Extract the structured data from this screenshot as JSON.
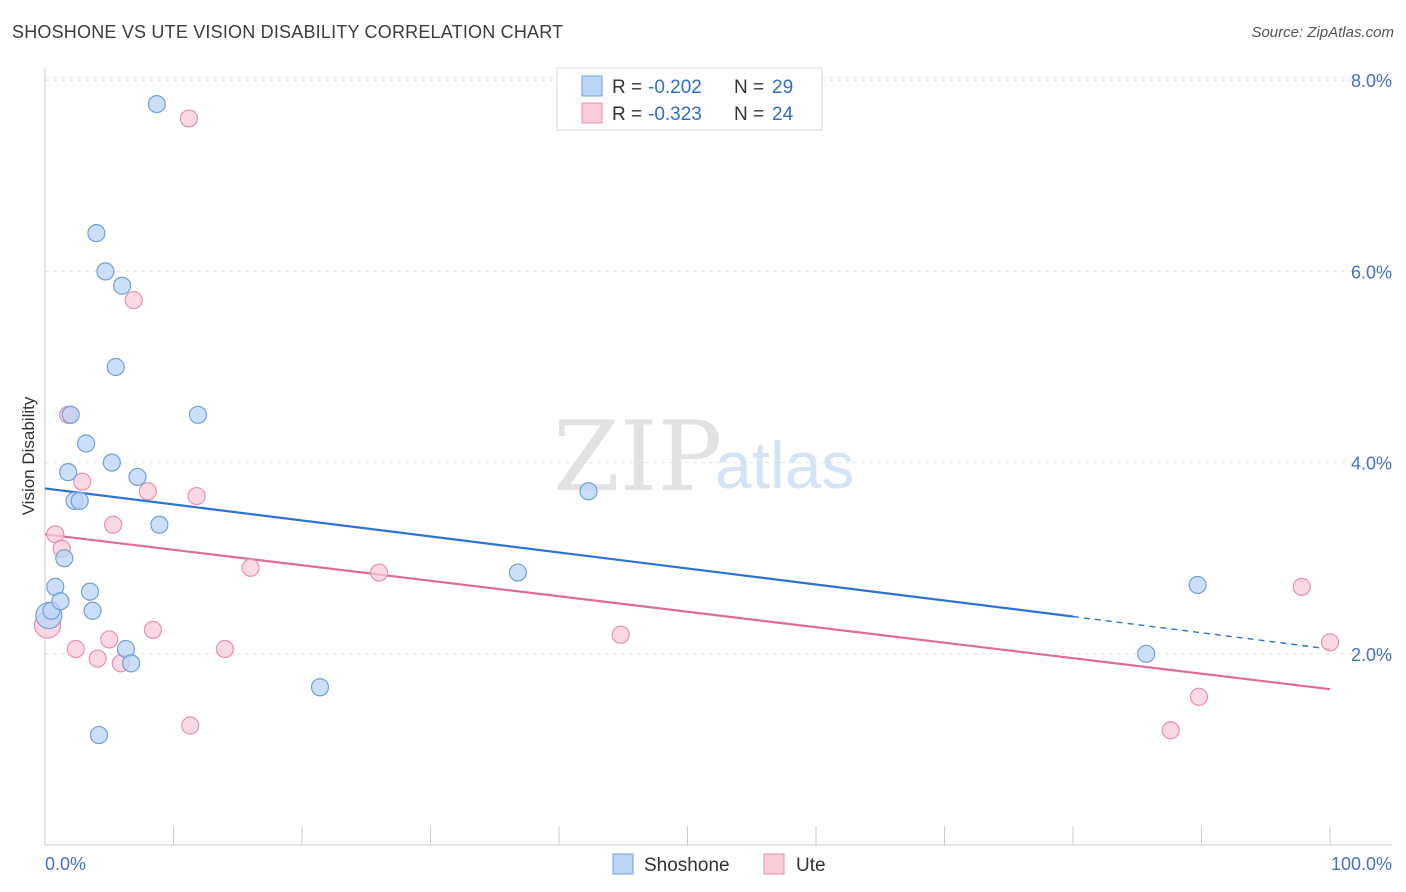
{
  "title": "SHOSHONE VS UTE VISION DISABILITY CORRELATION CHART",
  "source": "Source: ZipAtlas.com",
  "watermark": {
    "part1": "ZIP",
    "part2": "atlas"
  },
  "colors": {
    "shoshone_fill": "#bcd4f5",
    "shoshone_stroke": "#6f9fdc",
    "shoshone_line": "#2f72d6",
    "ute_fill": "#f8ccd9",
    "ute_stroke": "#e890ad",
    "ute_line": "#e06b96",
    "grid": "#dde3ec"
  },
  "legend": {
    "rows": [
      {
        "r_label": "R = ",
        "r_value": "-0.202",
        "n_label": "N = ",
        "n_value": "29"
      },
      {
        "r_label": "R = ",
        "r_value": "-0.323",
        "n_label": "N = ",
        "n_value": "24"
      }
    ]
  },
  "bottom_legend": [
    "Shoshone",
    "Ute"
  ],
  "chart_data": {
    "type": "scatter",
    "title": "SHOSHONE VS UTE VISION DISABILITY CORRELATION CHART",
    "xlabel": "",
    "ylabel": "Vision Disability",
    "xlim": [
      0,
      100
    ],
    "ylim": [
      0,
      8.4
    ],
    "x_tick_labels": [
      "0.0%",
      "100.0%"
    ],
    "y_ticks": [
      2,
      4,
      6,
      8
    ],
    "y_tick_labels": [
      "2.0%",
      "4.0%",
      "6.0%",
      "8.0%"
    ],
    "series": [
      {
        "name": "Shoshone",
        "points": [
          [
            0.3,
            2.4
          ],
          [
            0.5,
            2.45
          ],
          [
            0.8,
            2.7
          ],
          [
            1.2,
            2.55
          ],
          [
            1.5,
            3.0
          ],
          [
            1.8,
            3.9
          ],
          [
            2.0,
            4.5
          ],
          [
            2.3,
            3.6
          ],
          [
            2.7,
            3.6
          ],
          [
            3.2,
            4.2
          ],
          [
            3.5,
            2.65
          ],
          [
            3.7,
            2.45
          ],
          [
            4.0,
            6.4
          ],
          [
            4.2,
            1.15
          ],
          [
            4.7,
            6.0
          ],
          [
            5.2,
            4.0
          ],
          [
            5.5,
            5.0
          ],
          [
            6.0,
            5.85
          ],
          [
            6.3,
            2.05
          ],
          [
            6.7,
            1.9
          ],
          [
            7.2,
            3.85
          ],
          [
            8.7,
            7.75
          ],
          [
            8.9,
            3.35
          ],
          [
            11.9,
            4.5
          ],
          [
            21.4,
            1.65
          ],
          [
            36.8,
            2.85
          ],
          [
            42.3,
            3.7
          ],
          [
            85.7,
            2.0
          ],
          [
            89.7,
            2.72
          ]
        ],
        "trend": {
          "x_start": 0,
          "y_start": 3.73,
          "x_solid_end": 80,
          "y_solid_end": 2.39,
          "x_end": 100,
          "y_end": 2.05
        }
      },
      {
        "name": "Ute",
        "points": [
          [
            0.2,
            2.3
          ],
          [
            0.8,
            3.25
          ],
          [
            1.3,
            3.1
          ],
          [
            1.8,
            4.5
          ],
          [
            2.4,
            2.05
          ],
          [
            2.9,
            3.8
          ],
          [
            4.1,
            1.95
          ],
          [
            5.0,
            2.15
          ],
          [
            5.3,
            3.35
          ],
          [
            5.9,
            1.9
          ],
          [
            6.9,
            5.7
          ],
          [
            8.0,
            3.7
          ],
          [
            8.4,
            2.25
          ],
          [
            11.2,
            7.6
          ],
          [
            11.3,
            1.25
          ],
          [
            11.8,
            3.65
          ],
          [
            14.0,
            2.05
          ],
          [
            16.0,
            2.9
          ],
          [
            26.0,
            2.85
          ],
          [
            44.8,
            2.2
          ],
          [
            87.6,
            1.2
          ],
          [
            89.8,
            1.55
          ],
          [
            97.8,
            2.7
          ],
          [
            100.0,
            2.12
          ]
        ],
        "trend": {
          "x_start": 0,
          "y_start": 3.25,
          "x_end": 100,
          "y_end": 1.63
        }
      }
    ]
  }
}
